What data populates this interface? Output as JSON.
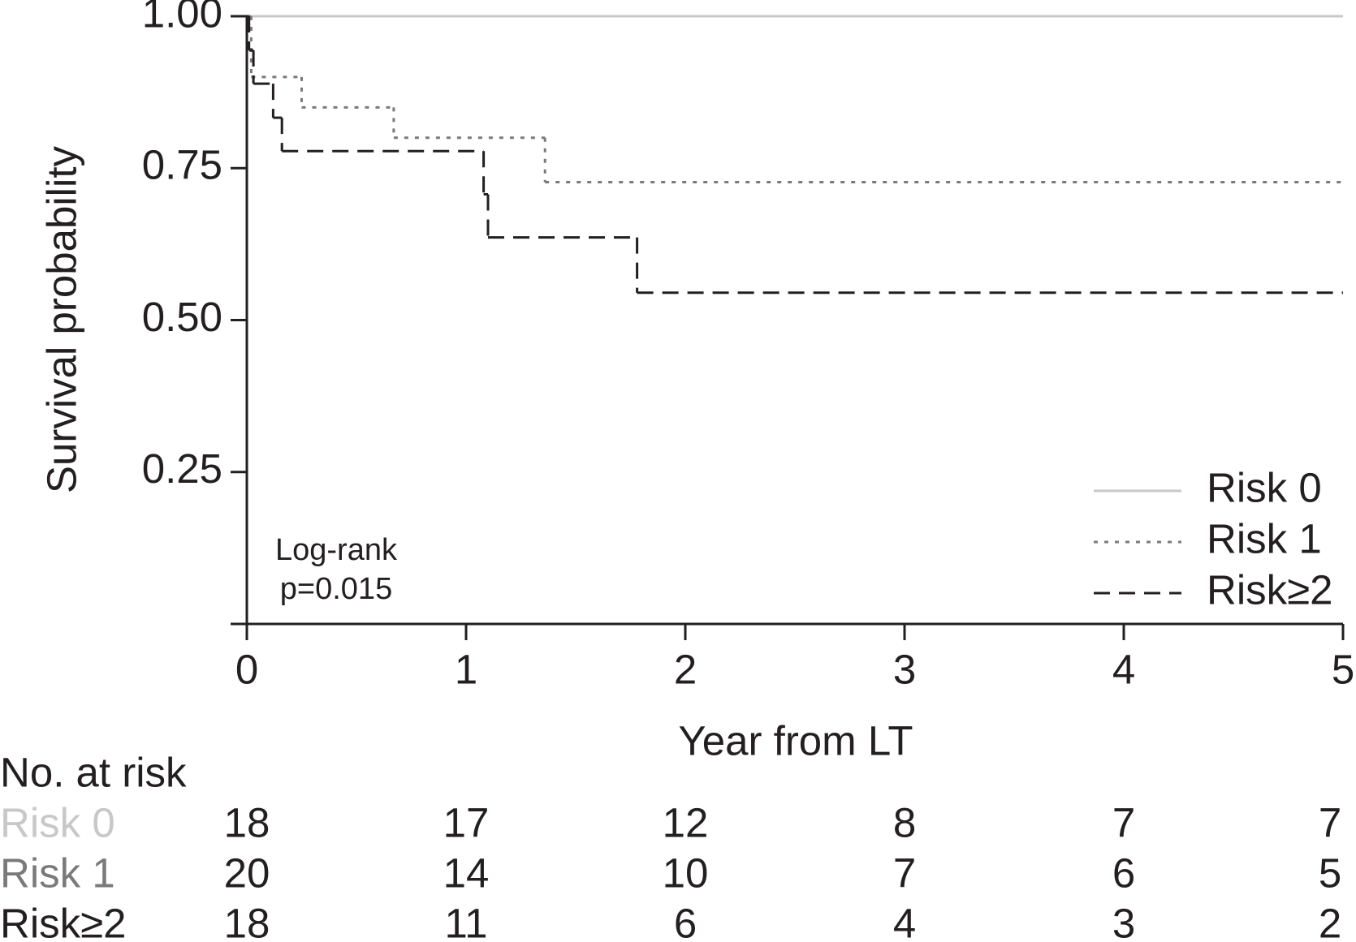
{
  "chart_data": {
    "type": "step",
    "x_label": "Year from LT",
    "y_label": "Survival probability",
    "xlim": [
      0,
      5
    ],
    "xticks": [
      0,
      1,
      2,
      3,
      4,
      5
    ],
    "ylim": [
      0,
      1
    ],
    "yticks": [
      {
        "value": 0.25,
        "label": "0.25"
      },
      {
        "value": 0.5,
        "label": "0.50"
      },
      {
        "value": 0.75,
        "label": "0.75"
      },
      {
        "value": 1,
        "label": "1.00"
      }
    ],
    "legend": "lower right",
    "annotation": [
      "Log-rank",
      "p=0.015"
    ],
    "risk_table_title": "No. at risk",
    "series": [
      {
        "name": "Risk 0",
        "color": "#c8c8c8",
        "linestyle": "solid",
        "x": [
          0,
          5
        ],
        "values": [
          1,
          1
        ],
        "at_risk": [
          18,
          17,
          12,
          8,
          7,
          7
        ]
      },
      {
        "name": "Risk 1",
        "color": "#7a7a7a",
        "linestyle": "dotted",
        "x": [
          0,
          0.02,
          0.25,
          0.67,
          1.36,
          5
        ],
        "values": [
          1,
          0.9,
          0.85,
          0.8,
          0.727,
          0.727
        ],
        "at_risk": [
          20,
          14,
          10,
          7,
          6,
          5
        ]
      },
      {
        "name": "Risk≥2",
        "color": "#231f20",
        "linestyle": "dashed",
        "x": [
          0,
          0.01,
          0.03,
          0.12,
          0.16,
          1.08,
          1.1,
          1.78,
          5
        ],
        "values": [
          1,
          0.944,
          0.889,
          0.833,
          0.778,
          0.707,
          0.636,
          0.545,
          0.545
        ],
        "at_risk": [
          18,
          11,
          6,
          4,
          3,
          2
        ]
      }
    ]
  }
}
